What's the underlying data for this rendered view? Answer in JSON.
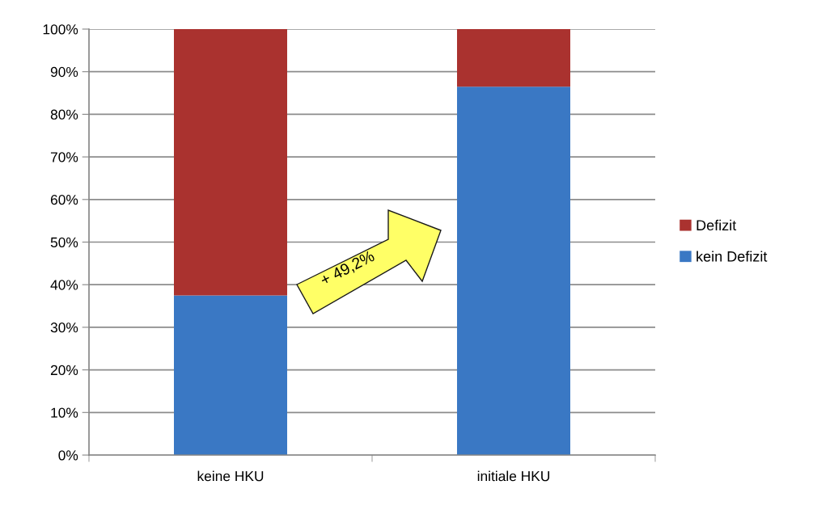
{
  "chart_data": {
    "type": "bar",
    "stacked": true,
    "categories": [
      "keine HKU",
      "initiale HKU"
    ],
    "series": [
      {
        "name": "kein Defizit",
        "color": "#3a78c4",
        "values": [
          37.5,
          86.5
        ]
      },
      {
        "name": "Defizit",
        "color": "#aa322f",
        "values": [
          62.5,
          13.5
        ]
      }
    ],
    "ylim": [
      0,
      100
    ],
    "yticks": [
      {
        "value": 0,
        "label": "0%"
      },
      {
        "value": 10,
        "label": "10%"
      },
      {
        "value": 20,
        "label": "20%"
      },
      {
        "value": 30,
        "label": "30%"
      },
      {
        "value": 40,
        "label": "40%"
      },
      {
        "value": 50,
        "label": "50%"
      },
      {
        "value": 60,
        "label": "60%"
      },
      {
        "value": 70,
        "label": "70%"
      },
      {
        "value": 80,
        "label": "80%"
      },
      {
        "value": 90,
        "label": "90%"
      },
      {
        "value": 100,
        "label": "100%"
      }
    ],
    "grid": "y",
    "legend": "right",
    "annotations": [
      "+ 49,2%"
    ]
  }
}
